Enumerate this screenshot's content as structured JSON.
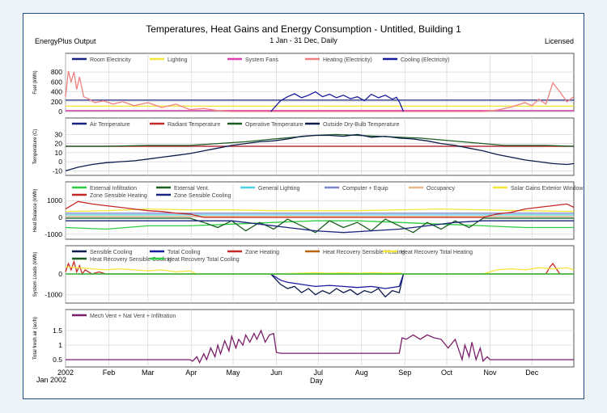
{
  "header": {
    "title": "Temperatures, Heat Gains and Energy Consumption - Untitled, Building 1",
    "subtitle": "1 Jan - 31 Dec, Daily",
    "left_label": "EnergyPlus Output",
    "right_label": "Licensed"
  },
  "x_axis": {
    "label": "Day",
    "year_label": "Jan 2002",
    "ticks": [
      "2002",
      "Feb",
      "Mar",
      "Apr",
      "May",
      "Jun",
      "Jul",
      "Aug",
      "Sep",
      "Oct",
      "Nov",
      "Dec"
    ]
  },
  "chart_data": [
    {
      "type": "line",
      "ylabel": "Fuel (kWh)",
      "ylim": [
        0,
        900
      ],
      "yticks": [
        0,
        200,
        400,
        600,
        800
      ],
      "legend_placement": "top",
      "grid": true,
      "series": [
        {
          "name": "Room Electricity",
          "color": "#1a237e",
          "x": [
            1,
            365
          ],
          "values": [
            230,
            230
          ]
        },
        {
          "name": "Lighting",
          "color": "#f5e63b",
          "x": [
            1,
            365
          ],
          "values": [
            110,
            110
          ]
        },
        {
          "name": "System Fans",
          "color": "#e040b0",
          "x": [
            1,
            365
          ],
          "values": [
            20,
            20
          ]
        },
        {
          "name": "Heating (Electricity)",
          "color": "#f08080",
          "x": [
            1,
            3,
            5,
            7,
            9,
            11,
            14,
            18,
            22,
            28,
            35,
            42,
            50,
            60,
            70,
            80,
            90,
            100,
            110,
            120,
            300,
            310,
            320,
            330,
            335,
            340,
            345,
            350,
            355,
            360,
            365
          ],
          "values": [
            300,
            820,
            600,
            800,
            450,
            700,
            300,
            250,
            180,
            220,
            150,
            200,
            120,
            180,
            80,
            150,
            40,
            60,
            20,
            0,
            0,
            30,
            90,
            180,
            120,
            250,
            150,
            580,
            400,
            200,
            300
          ]
        },
        {
          "name": "Cooling (Electricity)",
          "color": "#1a1aa0",
          "x": [
            148,
            155,
            160,
            165,
            170,
            175,
            180,
            185,
            190,
            195,
            200,
            205,
            210,
            215,
            220,
            225,
            230,
            235,
            238,
            240,
            243
          ],
          "values": [
            0,
            220,
            300,
            360,
            280,
            330,
            400,
            300,
            350,
            280,
            330,
            260,
            300,
            220,
            350,
            280,
            330,
            250,
            290,
            200,
            0
          ]
        }
      ]
    },
    {
      "type": "line",
      "ylabel": "Temperature (C)",
      "ylim": [
        -15,
        33
      ],
      "yticks": [
        -10,
        0,
        10,
        20,
        30
      ],
      "legend_placement": "top",
      "grid": true,
      "series": [
        {
          "name": "Air Temperature",
          "color": "#1a237e",
          "x": [
            1,
            365
          ],
          "values": [
            17,
            17
          ]
        },
        {
          "name": "Radiant Temperature",
          "color": "#c62828",
          "x": [
            1,
            365
          ],
          "values": [
            17,
            17
          ]
        },
        {
          "name": "Operative Temperature",
          "color": "#1b5e20",
          "x": [
            1,
            30,
            60,
            90,
            110,
            130,
            150,
            165,
            180,
            195,
            210,
            225,
            240,
            255,
            270,
            285,
            300,
            315,
            330,
            345,
            365
          ],
          "values": [
            17,
            17,
            18,
            18,
            20,
            22,
            25,
            27,
            29,
            30,
            29,
            28,
            27,
            26,
            24,
            22,
            20,
            18,
            18,
            18,
            17
          ]
        },
        {
          "name": "Outside Dry-Bulb Temperature",
          "color": "#0d1b4a",
          "x": [
            1,
            10,
            20,
            30,
            40,
            50,
            60,
            70,
            80,
            90,
            100,
            110,
            120,
            130,
            140,
            150,
            160,
            170,
            180,
            190,
            200,
            210,
            220,
            230,
            240,
            250,
            260,
            270,
            280,
            290,
            300,
            310,
            320,
            330,
            340,
            350,
            360,
            365
          ],
          "values": [
            -10,
            -6,
            -3,
            -1,
            0,
            1,
            3,
            5,
            7,
            9,
            12,
            15,
            18,
            20,
            22,
            23,
            25,
            28,
            29,
            29,
            28,
            30,
            27,
            28,
            26,
            25,
            23,
            20,
            18,
            15,
            12,
            8,
            5,
            2,
            0,
            -2,
            -3,
            -2
          ]
        }
      ]
    },
    {
      "type": "line",
      "ylabel": "Heat Balance (kWh)",
      "ylim": [
        -1300,
        1300
      ],
      "yticks": [
        -1000,
        0,
        1000
      ],
      "legend_placement": "top",
      "grid": true,
      "series": [
        {
          "name": "External Infiltration",
          "color": "#2ecc40",
          "x": [
            1,
            30,
            60,
            90,
            120,
            150,
            180,
            210,
            240,
            270,
            300,
            330,
            365
          ],
          "values": [
            -600,
            -700,
            -500,
            -500,
            -400,
            -300,
            -200,
            -200,
            -300,
            -400,
            -500,
            -600,
            -600
          ]
        },
        {
          "name": "External Vent.",
          "color": "#1b5e20",
          "x": [
            1,
            90,
            100,
            110,
            120,
            130,
            140,
            150,
            160,
            170,
            180,
            190,
            200,
            210,
            220,
            230,
            240,
            250,
            260,
            270,
            280,
            290,
            300,
            365
          ],
          "values": [
            -50,
            -50,
            -300,
            -600,
            -200,
            -800,
            -300,
            -700,
            -100,
            -500,
            -900,
            -200,
            -600,
            -300,
            -800,
            -100,
            -500,
            -900,
            -300,
            -700,
            -200,
            -600,
            -50,
            -50
          ]
        },
        {
          "name": "General Lighting",
          "color": "#4dd0e1",
          "x": [
            1,
            365
          ],
          "values": [
            150,
            150
          ]
        },
        {
          "name": "Computer + Equip",
          "color": "#7986cb",
          "x": [
            1,
            365
          ],
          "values": [
            250,
            250
          ]
        },
        {
          "name": "Occupancy",
          "color": "#e6b88a",
          "x": [
            1,
            365
          ],
          "values": [
            60,
            60
          ]
        },
        {
          "name": "Solar Gains Exterior Windows",
          "color": "#f5e63b",
          "x": [
            1,
            30,
            60,
            90,
            120,
            150,
            180,
            210,
            240,
            270,
            300,
            330,
            365
          ],
          "values": [
            350,
            400,
            500,
            450,
            450,
            400,
            400,
            400,
            450,
            500,
            450,
            400,
            350
          ]
        },
        {
          "name": "Zone Sensible Heating",
          "color": "#c62828",
          "x": [
            1,
            10,
            20,
            30,
            40,
            50,
            60,
            70,
            80,
            90,
            100,
            300,
            310,
            320,
            330,
            340,
            350,
            360,
            365
          ],
          "values": [
            500,
            950,
            800,
            700,
            600,
            500,
            400,
            350,
            250,
            200,
            0,
            0,
            200,
            300,
            500,
            600,
            700,
            800,
            600
          ]
        },
        {
          "name": "Zone Sensible Cooling",
          "color": "#1a237e",
          "x": [
            1,
            120,
            140,
            160,
            180,
            200,
            220,
            240,
            260,
            280,
            300,
            365
          ],
          "values": [
            -200,
            -200,
            -400,
            -600,
            -800,
            -900,
            -800,
            -700,
            -500,
            -300,
            -200,
            -200
          ]
        }
      ]
    },
    {
      "type": "line",
      "ylabel": "System Loads (kWh)",
      "ylim": [
        -1400,
        700
      ],
      "yticks": [
        -1000,
        0
      ],
      "legend_placement": "top",
      "grid": true,
      "series": [
        {
          "name": "Sensible Cooling",
          "color": "#0d1b4a",
          "x": [
            148,
            155,
            160,
            165,
            170,
            175,
            180,
            185,
            190,
            195,
            200,
            205,
            210,
            215,
            220,
            225,
            230,
            235,
            240,
            243
          ],
          "values": [
            0,
            -500,
            -700,
            -600,
            -900,
            -700,
            -1000,
            -800,
            -950,
            -700,
            -900,
            -750,
            -1000,
            -800,
            -900,
            -700,
            -1100,
            -800,
            -900,
            0
          ]
        },
        {
          "name": "Total Cooling",
          "color": "#1a1aa0",
          "x": [
            148,
            155,
            160,
            170,
            180,
            190,
            200,
            210,
            220,
            230,
            240,
            243
          ],
          "values": [
            0,
            -300,
            -400,
            -500,
            -600,
            -550,
            -600,
            -650,
            -600,
            -700,
            -600,
            0
          ]
        },
        {
          "name": "Zone Heating",
          "color": "#c62828",
          "x": [
            1,
            3,
            5,
            7,
            9,
            11,
            13,
            15,
            20,
            25,
            30,
            340,
            345,
            348,
            350,
            352,
            355,
            365
          ],
          "values": [
            100,
            500,
            200,
            600,
            100,
            400,
            0,
            200,
            0,
            100,
            0,
            0,
            0,
            350,
            500,
            300,
            0,
            0
          ]
        },
        {
          "name": "Heat Recovery Sensible Heating",
          "color": "#b8650a",
          "x": [
            1,
            365
          ],
          "values": [
            0,
            0
          ]
        },
        {
          "name": "Heat Recovery Total Heating",
          "color": "#f5e63b",
          "x": [
            1,
            10,
            20,
            30,
            40,
            50,
            60,
            70,
            80,
            90,
            95,
            150,
            160,
            170,
            180,
            190,
            200,
            210,
            220,
            230,
            240,
            243,
            300,
            305,
            310,
            320,
            330,
            340,
            350,
            360,
            365
          ],
          "values": [
            350,
            300,
            250,
            200,
            250,
            200,
            150,
            200,
            100,
            150,
            0,
            0,
            20,
            40,
            60,
            40,
            50,
            30,
            60,
            40,
            50,
            0,
            0,
            100,
            200,
            250,
            200,
            300,
            250,
            300,
            200
          ]
        },
        {
          "name": "Heat Recovery Sensible Cooling",
          "color": "#1b5e20",
          "x": [
            1,
            365
          ],
          "values": [
            0,
            0
          ]
        },
        {
          "name": "Heat Recovery Total Cooling",
          "color": "#2ecc40",
          "x": [
            1,
            365
          ],
          "values": [
            0,
            0
          ]
        }
      ]
    },
    {
      "type": "line",
      "ylabel": "Total fresh air (ac/h)",
      "ylim": [
        0.25,
        1.75
      ],
      "yticks": [
        0.5,
        1.0,
        1.5
      ],
      "legend_placement": "top",
      "grid": true,
      "series": [
        {
          "name": "Mech Vent + Nat Vent + Infiltration",
          "color": "#7b1f6a",
          "x": [
            1,
            90,
            92,
            95,
            97,
            100,
            102,
            105,
            108,
            110,
            112,
            115,
            118,
            120,
            123,
            125,
            128,
            130,
            133,
            136,
            138,
            141,
            144,
            147,
            150,
            152,
            155,
            160,
            240,
            242,
            245,
            250,
            255,
            260,
            265,
            270,
            275,
            280,
            285,
            287,
            290,
            292,
            295,
            298,
            300,
            303,
            305,
            365
          ],
          "values": [
            0.5,
            0.5,
            0.45,
            0.6,
            0.4,
            0.7,
            0.5,
            0.9,
            0.6,
            1.0,
            0.7,
            1.15,
            0.8,
            1.3,
            0.9,
            1.2,
            1.0,
            1.35,
            1.1,
            1.4,
            1.2,
            1.5,
            1.1,
            1.35,
            1.4,
            0.75,
            0.72,
            0.72,
            0.72,
            1.25,
            1.2,
            1.35,
            1.2,
            1.35,
            1.25,
            1.2,
            0.9,
            1.2,
            0.5,
            1.0,
            0.6,
            1.1,
            0.5,
            0.9,
            0.45,
            0.6,
            0.5,
            0.5
          ]
        }
      ]
    }
  ]
}
